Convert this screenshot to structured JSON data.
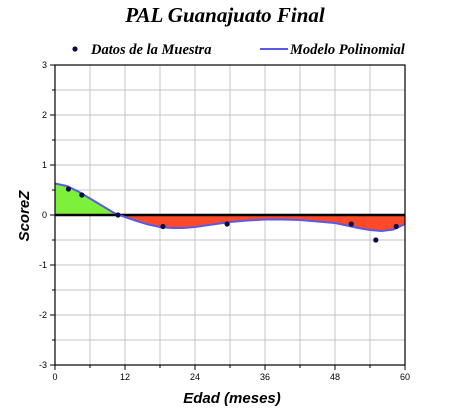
{
  "chart_data": {
    "type": "line",
    "title": "PAL Guanajuato Final",
    "xlabel": "Edad (meses)",
    "ylabel": "ScoreZ",
    "xlim": [
      0,
      60
    ],
    "ylim": [
      -3,
      3
    ],
    "x_ticks": [
      "0",
      "12",
      "24",
      "36",
      "48",
      "60"
    ],
    "y_ticks": [
      "-3",
      "-2",
      "-1",
      "0",
      "1",
      "2",
      "3"
    ],
    "grid": true,
    "legend_position": "top",
    "series": [
      {
        "name": "Datos de la Muestra",
        "kind": "scatter",
        "color": "#0b0b4a",
        "x": [
          2.3,
          4.6,
          10.8,
          18.5,
          29.5,
          50.8,
          55.0,
          58.5
        ],
        "y": [
          0.52,
          0.4,
          0.0,
          -0.23,
          -0.18,
          -0.18,
          -0.5,
          -0.23
        ]
      },
      {
        "name": "Modelo Polinomial",
        "kind": "line",
        "color": "#5a5ae6",
        "x": [
          0,
          2,
          4,
          6,
          8,
          10,
          11,
          12,
          14,
          16,
          18,
          20,
          22,
          24,
          27,
          30,
          33,
          36,
          39,
          42,
          45,
          48,
          50,
          52,
          54,
          56,
          58,
          60
        ],
        "y": [
          0.63,
          0.58,
          0.47,
          0.33,
          0.19,
          0.05,
          0.0,
          -0.04,
          -0.12,
          -0.19,
          -0.24,
          -0.26,
          -0.26,
          -0.24,
          -0.19,
          -0.14,
          -0.11,
          -0.09,
          -0.09,
          -0.1,
          -0.13,
          -0.16,
          -0.21,
          -0.26,
          -0.3,
          -0.32,
          -0.29,
          -0.18
        ]
      }
    ],
    "fill_positive_color": "#7df03c",
    "fill_negative_color": "#ff4a2a"
  }
}
